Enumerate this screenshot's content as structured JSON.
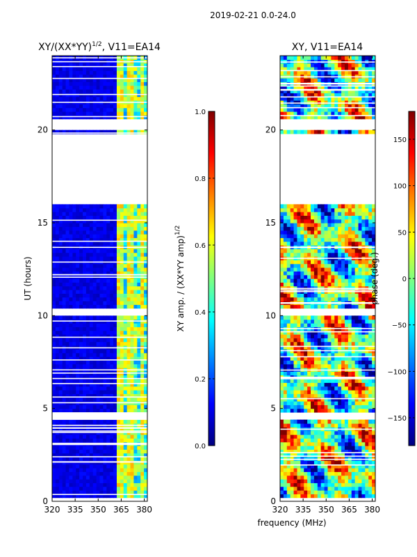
{
  "figure": {
    "suptitle": "2019-02-21 0.0-24.0"
  },
  "chart_data": [
    {
      "type": "heatmap",
      "title": "XY/(XX*YY)^(1/2), V11=EA14",
      "title_main": "XY/(XX*YY)",
      "title_sup": "1/2",
      "title_tail": ", V11=EA14",
      "xlabel": "",
      "ylabel": "UT (hours)",
      "xlim": [
        320,
        382
      ],
      "ylim": [
        0,
        24
      ],
      "xticks": [
        320,
        335,
        350,
        365,
        380
      ],
      "yticks": [
        0,
        5,
        10,
        15,
        20
      ],
      "colorbar": {
        "label": "XY amp. / (XX*YY amp)^(1/2)",
        "label_main": "XY amp. / (XX*YY amp)",
        "label_sup": "1/2",
        "range": [
          0.0,
          1.0
        ],
        "ticks": [
          "0.0",
          "0.2",
          "0.4",
          "0.6",
          "0.8",
          "1.0"
        ],
        "tick_values": [
          0.0,
          0.2,
          0.4,
          0.6,
          0.8,
          1.0
        ],
        "colormap": "jet"
      },
      "bright_band_MHz": [
        362,
        381
      ],
      "no_data_hours": [
        [
          16.0,
          19.3
        ],
        [
          19.45,
          19.9
        ],
        [
          20.1,
          20.7
        ],
        [
          10.1,
          10.35
        ],
        [
          4.45,
          4.75
        ],
        [
          0.02,
          0.25
        ]
      ]
    },
    {
      "type": "heatmap",
      "title": "XY, V11=EA14",
      "xlabel": "frequency (MHz)",
      "ylabel": "",
      "xlim": [
        320,
        382
      ],
      "ylim": [
        0,
        24
      ],
      "xticks": [
        320,
        335,
        350,
        365,
        380
      ],
      "yticks": [
        0,
        5,
        10,
        15,
        20
      ],
      "colorbar": {
        "label": "phase (deg.)",
        "range": [
          -180,
          180
        ],
        "ticks": [
          "150",
          "100",
          "50",
          "0",
          "−50",
          "−100",
          "−150"
        ],
        "tick_values": [
          150,
          100,
          50,
          0,
          -50,
          -100,
          -150
        ],
        "colormap": "jet"
      },
      "no_data_hours": [
        [
          16.0,
          19.3
        ],
        [
          19.45,
          19.9
        ],
        [
          20.1,
          20.7
        ],
        [
          10.1,
          10.35
        ],
        [
          4.45,
          4.75
        ],
        [
          0.02,
          0.25
        ]
      ]
    }
  ]
}
